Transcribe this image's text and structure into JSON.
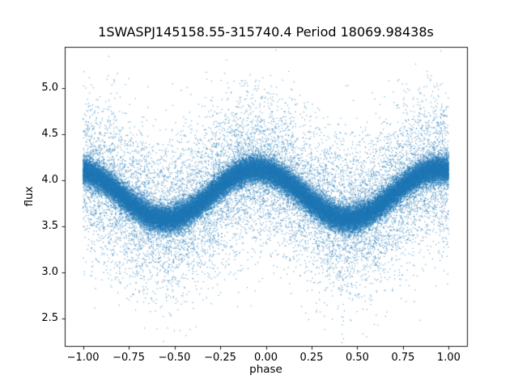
{
  "chart_data": {
    "type": "scatter",
    "title": "1SWASPJ145158.55-315740.4 Period 18069.98438s",
    "xlabel": "phase",
    "ylabel": "flux",
    "xlim": [
      -1.1,
      1.1
    ],
    "ylim": [
      2.2,
      5.45
    ],
    "xticks": [
      -1.0,
      -0.75,
      -0.5,
      -0.25,
      0.0,
      0.25,
      0.5,
      0.75,
      1.0
    ],
    "xtick_labels": [
      "−1.00",
      "−0.75",
      "−0.50",
      "−0.25",
      "0.00",
      "0.25",
      "0.50",
      "0.75",
      "1.00"
    ],
    "yticks": [
      2.5,
      3.0,
      3.5,
      4.0,
      4.5,
      5.0
    ],
    "ytick_labels": [
      "2.5",
      "3.0",
      "3.5",
      "4.0",
      "4.5",
      "5.0"
    ],
    "marker_color": "#1f77b4",
    "background": "#ffffff",
    "grid": false,
    "legend": false,
    "n_points": 65000,
    "x_range": [
      -1.0,
      1.0
    ],
    "trend": {
      "shape": "cosine",
      "mean_flux": 3.85,
      "amplitude": 0.27,
      "peak_phase": -0.05,
      "period_in_phase": 1.0
    },
    "trend_samples": {
      "phase": [
        -1.0,
        -0.875,
        -0.75,
        -0.625,
        -0.5,
        -0.375,
        -0.25,
        -0.125,
        0.0,
        0.125,
        0.25,
        0.375,
        0.5,
        0.625,
        0.75,
        0.875,
        1.0
      ],
      "flux": [
        4.107,
        3.973,
        3.767,
        3.609,
        3.593,
        3.727,
        3.933,
        4.091,
        4.107,
        3.973,
        3.767,
        3.609,
        3.593,
        3.727,
        3.933,
        4.091,
        4.107
      ]
    },
    "noise": {
      "core_fraction": 0.8,
      "core_sigma": 0.072,
      "tail_sigma": 0.42
    },
    "observed_flux_extent": [
      2.3,
      5.3
    ],
    "seed": 42
  }
}
